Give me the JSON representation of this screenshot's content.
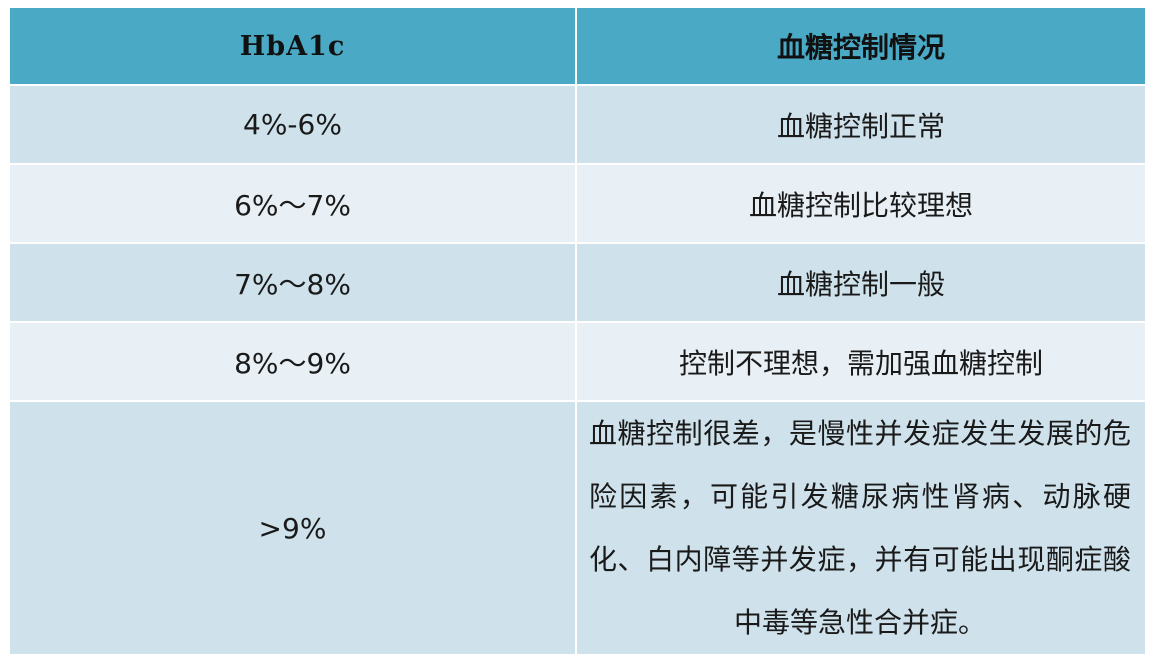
{
  "table": {
    "headers": [
      "HbA1c",
      "血糖控制情况"
    ],
    "rows": [
      {
        "hba1c": "4%-6%",
        "status": "血糖控制正常"
      },
      {
        "hba1c": "6%～7%",
        "status": "血糖控制比较理想"
      },
      {
        "hba1c": "7%～8%",
        "status": "血糖控制一般"
      },
      {
        "hba1c": "8%～9%",
        "status": "控制不理想，需加强血糖控制"
      },
      {
        "hba1c": ">9%",
        "status": "血糖控制很差，是慢性并发症发生发展的危险因素，可能引发糖尿病性肾病、动脉硬化、白内障等并发症，并有可能出现酮症酸中毒等急性合并症。"
      }
    ]
  },
  "colors": {
    "header_bg": "#4aaac6",
    "row_alt_bg": "#cfe2ec",
    "row_base_bg": "#e8f0f5",
    "border": "#ffffff"
  }
}
